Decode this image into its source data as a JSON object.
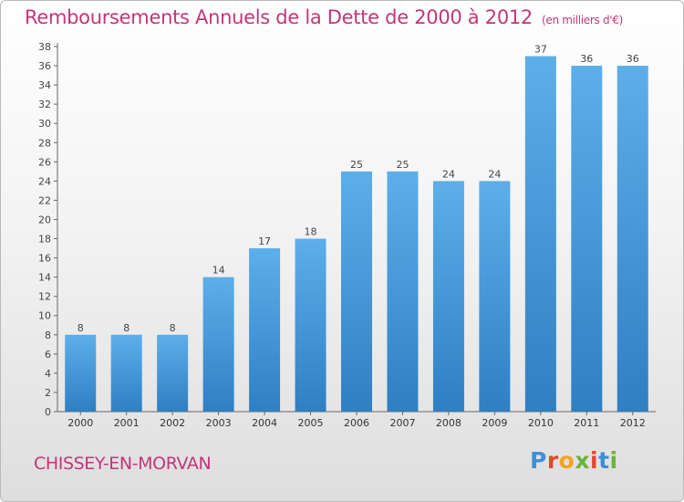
{
  "chart_data": {
    "type": "bar",
    "title": "Remboursements Annuels de la Dette de 2000 à 2012",
    "unit_note": "(en milliers d'€)",
    "categories": [
      "2000",
      "2001",
      "2002",
      "2003",
      "2004",
      "2005",
      "2006",
      "2007",
      "2008",
      "2009",
      "2010",
      "2011",
      "2012"
    ],
    "values": [
      8,
      8,
      8,
      14,
      17,
      18,
      25,
      25,
      24,
      24,
      37,
      36,
      36
    ],
    "ylim": [
      0,
      38
    ],
    "ytick_step": 2,
    "grid": false,
    "bar_color": "#4a9ad8"
  },
  "footer": {
    "place_name": "CHISSEY-EN-MORVAN",
    "logo_text": "Proxiti",
    "logo_colors": [
      "#3e8fd6",
      "#e8452f",
      "#f2a51c",
      "#6bb33a",
      "#e8452f",
      "#3e8fd6",
      "#6bb33a"
    ]
  }
}
